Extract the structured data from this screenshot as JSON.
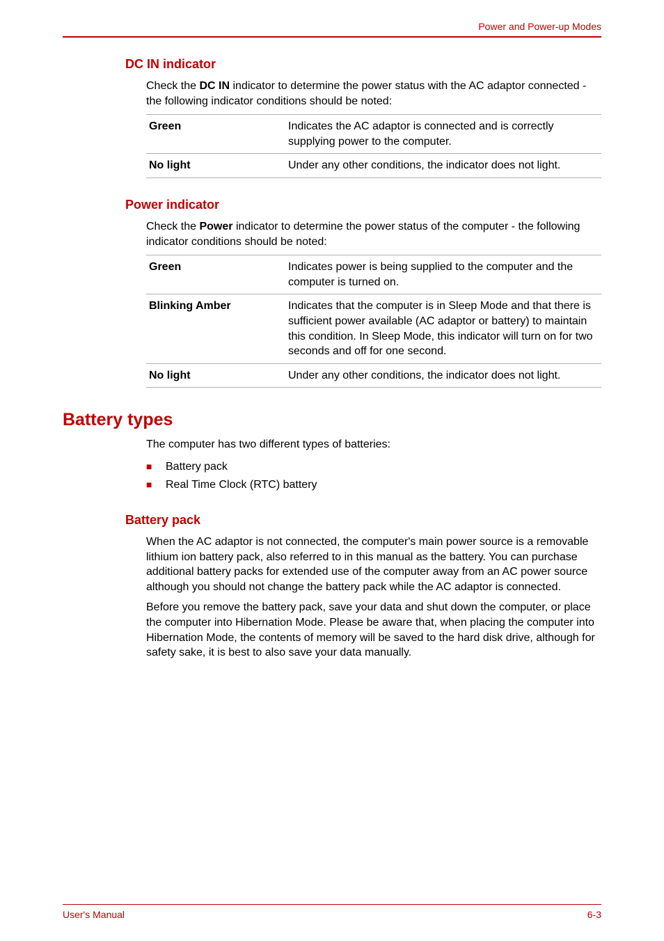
{
  "colors": {
    "accent": "#c00000",
    "text": "#000000",
    "rule": "#b0b0b0",
    "background": "#ffffff"
  },
  "header": {
    "running_title": "Power and Power-up Modes"
  },
  "sections": [
    {
      "heading": "DC IN indicator",
      "intro_pre": "Check the ",
      "intro_bold": "DC IN",
      "intro_post": " indicator to determine the power status with the AC adaptor connected - the following indicator conditions should be noted:",
      "table": [
        {
          "label": "Green",
          "desc": "Indicates the AC adaptor is connected and is correctly supplying power to the computer."
        },
        {
          "label": "No light",
          "desc": "Under any other conditions, the indicator does not light."
        }
      ]
    },
    {
      "heading": "Power indicator",
      "intro_pre": "Check the ",
      "intro_bold": "Power",
      "intro_post": " indicator to determine the power status of the computer - the following indicator conditions should be noted:",
      "table": [
        {
          "label": "Green",
          "desc": "Indicates power is being supplied to the computer and the computer is turned on."
        },
        {
          "label": "Blinking Amber",
          "desc": "Indicates that the computer is in Sleep Mode and that there is sufficient power available (AC adaptor or battery) to maintain this condition. In Sleep Mode, this indicator will turn on for two seconds and off for one second."
        },
        {
          "label": "No light",
          "desc": "Under any other conditions, the indicator does not light."
        }
      ]
    }
  ],
  "battery": {
    "heading": "Battery types",
    "intro": "The computer has two different types of batteries:",
    "bullets": [
      "Battery pack",
      "Real Time Clock (RTC) battery"
    ],
    "sub": {
      "heading": "Battery pack",
      "paras": [
        "When the AC adaptor is not connected, the computer's main power source is a removable lithium ion battery pack, also referred to in this manual as the battery. You can purchase additional battery packs for extended use of the computer away from an AC power source although you should not change the battery pack while the AC adaptor is connected.",
        "Before you remove the battery pack, save your data and shut down the computer, or place the computer into Hibernation Mode. Please be aware that, when placing the computer into Hibernation Mode, the contents of memory will be saved to the hard disk drive, although for safety sake, it is best to also save your data manually."
      ]
    }
  },
  "footer": {
    "left": "User's Manual",
    "right": "6-3"
  }
}
